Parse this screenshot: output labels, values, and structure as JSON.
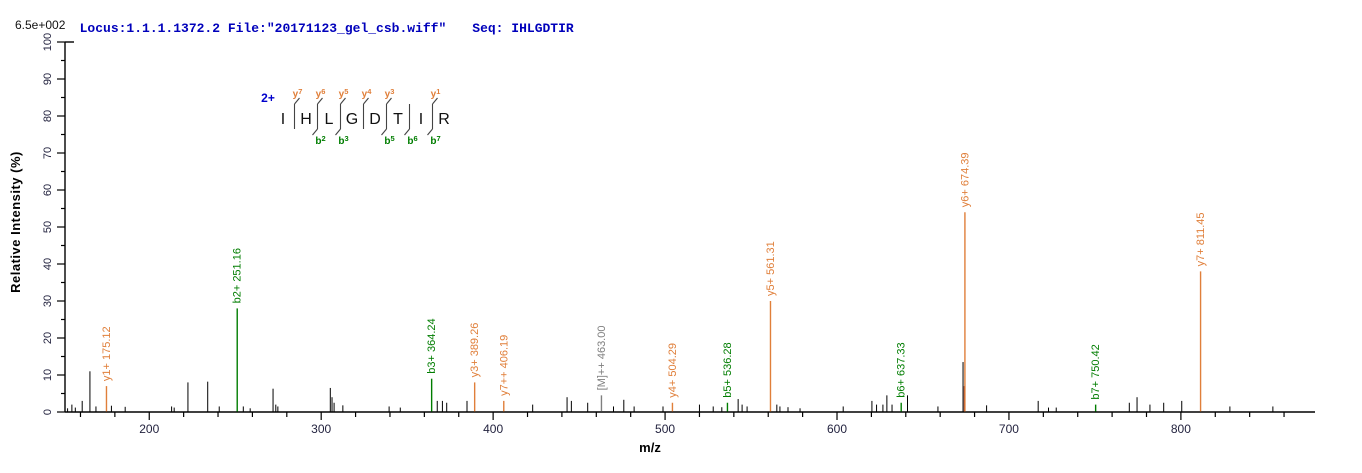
{
  "header": {
    "locus_file": "Locus:1.1.1.1372.2 File:\"20171123_gel_csb.wiff\"",
    "seq": "Seq: IHLGDTIR"
  },
  "peptide": {
    "charge_label": "2+",
    "residues": [
      "I",
      "H",
      "L",
      "G",
      "D",
      "T",
      "I",
      "R"
    ],
    "y_ions": [
      {
        "gap": 1,
        "label": "y7"
      },
      {
        "gap": 2,
        "label": "y6"
      },
      {
        "gap": 3,
        "label": "y5"
      },
      {
        "gap": 4,
        "label": "y4"
      },
      {
        "gap": 5,
        "label": "y3"
      },
      {
        "gap": 7,
        "label": "y1"
      }
    ],
    "b_ions": [
      {
        "gap": 2,
        "label": "b2"
      },
      {
        "gap": 3,
        "label": "b3"
      },
      {
        "gap": 5,
        "label": "b5"
      },
      {
        "gap": 6,
        "label": "b6"
      },
      {
        "gap": 7,
        "label": "b7"
      }
    ]
  },
  "chart_data": {
    "type": "bar",
    "subtype": "ms2-stick-spectrum",
    "title": "",
    "xlabel": "m/z",
    "ylabel": "Relative Intensity (%)",
    "intensity_scale_label": "6.5e+002",
    "xlim": [
      151,
      878
    ],
    "ylim": [
      0,
      100
    ],
    "x_major_ticks": [
      200,
      300,
      400,
      500,
      600,
      700,
      800
    ],
    "x_minor_tick_start": 160,
    "x_minor_tick_end": 860,
    "x_minor_tick_step": 20,
    "y_major_ticks": [
      0,
      10,
      20,
      30,
      40,
      50,
      60,
      70,
      80,
      90,
      100
    ],
    "y_minor_tick_step": 5,
    "grid": false,
    "legend": "none",
    "colors": {
      "axis": "#000000",
      "tick_text": "#23233f",
      "header_text": "#0000bb",
      "charge": "#0000cc",
      "y": "#e07f3a",
      "b": "#007d00",
      "parent": "#7f7f7f",
      "noise": "#000000",
      "noise2": "#8c3226",
      "frag_mark": "#444444"
    },
    "peaks": [
      {
        "mz": 152.5,
        "i": 1.0,
        "s": "noise"
      },
      {
        "mz": 155.0,
        "i": 2.0,
        "s": "noise"
      },
      {
        "mz": 157.0,
        "i": 1.2,
        "s": "noise"
      },
      {
        "mz": 161.0,
        "i": 3.0,
        "s": "noise"
      },
      {
        "mz": 165.5,
        "i": 11.0,
        "s": "noise"
      },
      {
        "mz": 169.0,
        "i": 1.5,
        "s": "noise"
      },
      {
        "mz": 175.12,
        "i": 7.0,
        "s": "y",
        "label": "y1+ 175.12"
      },
      {
        "mz": 178.0,
        "i": 1.7,
        "s": "noise"
      },
      {
        "mz": 186.0,
        "i": 1.4,
        "s": "noise"
      },
      {
        "mz": 213.0,
        "i": 1.5,
        "s": "noise"
      },
      {
        "mz": 214.5,
        "i": 1.2,
        "s": "noise"
      },
      {
        "mz": 222.5,
        "i": 8.0,
        "s": "noise"
      },
      {
        "mz": 234.0,
        "i": 8.2,
        "s": "noise"
      },
      {
        "mz": 240.7,
        "i": 1.5,
        "s": "noise"
      },
      {
        "mz": 251.16,
        "i": 28.0,
        "s": "b",
        "label": "b2+ 251.16"
      },
      {
        "mz": 254.7,
        "i": 1.5,
        "s": "noise"
      },
      {
        "mz": 258.7,
        "i": 1.0,
        "s": "noise"
      },
      {
        "mz": 272.0,
        "i": 6.3,
        "s": "noise"
      },
      {
        "mz": 273.6,
        "i": 2.0,
        "s": "noise"
      },
      {
        "mz": 274.8,
        "i": 1.5,
        "s": "noise"
      },
      {
        "mz": 305.3,
        "i": 6.5,
        "s": "noise"
      },
      {
        "mz": 306.3,
        "i": 4.0,
        "s": "noise"
      },
      {
        "mz": 307.5,
        "i": 2.5,
        "s": "noise"
      },
      {
        "mz": 312.6,
        "i": 1.8,
        "s": "noise"
      },
      {
        "mz": 339.5,
        "i": 1.5,
        "s": "noise"
      },
      {
        "mz": 346.0,
        "i": 1.2,
        "s": "noise"
      },
      {
        "mz": 364.24,
        "i": 9.0,
        "s": "b",
        "label": "b3+ 364.24"
      },
      {
        "mz": 367.5,
        "i": 3.0,
        "s": "noise"
      },
      {
        "mz": 370.5,
        "i": 3.0,
        "s": "noise"
      },
      {
        "mz": 373.0,
        "i": 2.5,
        "s": "noise"
      },
      {
        "mz": 384.8,
        "i": 3.0,
        "s": "noise"
      },
      {
        "mz": 389.26,
        "i": 8.0,
        "s": "y",
        "label": "y3+ 389.26"
      },
      {
        "mz": 406.19,
        "i": 3.0,
        "s": "y",
        "label": "y7++ 406.19"
      },
      {
        "mz": 423.0,
        "i": 2.0,
        "s": "noise"
      },
      {
        "mz": 443.0,
        "i": 4.0,
        "s": "noise"
      },
      {
        "mz": 445.5,
        "i": 3.0,
        "s": "noise"
      },
      {
        "mz": 455.0,
        "i": 2.5,
        "s": "noise"
      },
      {
        "mz": 463.0,
        "i": 4.5,
        "s": "parent",
        "label": "[M]++ 463.00"
      },
      {
        "mz": 470.0,
        "i": 1.5,
        "s": "noise"
      },
      {
        "mz": 476.0,
        "i": 3.3,
        "s": "noise"
      },
      {
        "mz": 482.0,
        "i": 1.5,
        "s": "noise"
      },
      {
        "mz": 498.8,
        "i": 1.5,
        "s": "noise"
      },
      {
        "mz": 504.29,
        "i": 2.5,
        "s": "y",
        "label": "y4+ 504.29"
      },
      {
        "mz": 520.0,
        "i": 2.0,
        "s": "noise"
      },
      {
        "mz": 528.0,
        "i": 1.5,
        "s": "noise"
      },
      {
        "mz": 533.0,
        "i": 1.3,
        "s": "noise"
      },
      {
        "mz": 536.28,
        "i": 2.5,
        "s": "b",
        "label": "b5+ 536.28"
      },
      {
        "mz": 542.5,
        "i": 3.5,
        "s": "noise"
      },
      {
        "mz": 544.8,
        "i": 2.0,
        "s": "noise"
      },
      {
        "mz": 547.7,
        "i": 1.5,
        "s": "noise"
      },
      {
        "mz": 561.31,
        "i": 30.0,
        "s": "y",
        "label": "y5+ 561.31"
      },
      {
        "mz": 565.0,
        "i": 2.0,
        "s": "noise"
      },
      {
        "mz": 566.8,
        "i": 1.5,
        "s": "noise"
      },
      {
        "mz": 571.5,
        "i": 1.3,
        "s": "noise"
      },
      {
        "mz": 578.5,
        "i": 1.0,
        "s": "noise"
      },
      {
        "mz": 603.6,
        "i": 1.5,
        "s": "noise"
      },
      {
        "mz": 620.3,
        "i": 3.0,
        "s": "noise"
      },
      {
        "mz": 623.0,
        "i": 2.0,
        "s": "noise"
      },
      {
        "mz": 626.7,
        "i": 2.0,
        "s": "noise"
      },
      {
        "mz": 629.0,
        "i": 4.5,
        "s": "noise"
      },
      {
        "mz": 632.0,
        "i": 2.0,
        "s": "noise"
      },
      {
        "mz": 637.33,
        "i": 2.5,
        "s": "b",
        "label": "b6+ 637.33"
      },
      {
        "mz": 641.0,
        "i": 4.5,
        "s": "noise"
      },
      {
        "mz": 658.7,
        "i": 1.5,
        "s": "noise"
      },
      {
        "mz": 673.3,
        "i": 13.5,
        "s": "noise"
      },
      {
        "mz": 674.0,
        "i": 7.0,
        "s": "noise2"
      },
      {
        "mz": 674.39,
        "i": 54.0,
        "s": "y",
        "label": "y6+ 674.39"
      },
      {
        "mz": 687.0,
        "i": 1.8,
        "s": "noise"
      },
      {
        "mz": 717.0,
        "i": 3.0,
        "s": "noise"
      },
      {
        "mz": 723.0,
        "i": 1.2,
        "s": "noise"
      },
      {
        "mz": 727.5,
        "i": 1.2,
        "s": "noise"
      },
      {
        "mz": 750.42,
        "i": 2.0,
        "s": "b",
        "label": "b7+ 750.42"
      },
      {
        "mz": 770.0,
        "i": 2.5,
        "s": "noise"
      },
      {
        "mz": 774.5,
        "i": 4.0,
        "s": "noise"
      },
      {
        "mz": 782.0,
        "i": 2.0,
        "s": "noise"
      },
      {
        "mz": 790.0,
        "i": 2.5,
        "s": "noise"
      },
      {
        "mz": 800.5,
        "i": 3.0,
        "s": "noise"
      },
      {
        "mz": 811.45,
        "i": 38.0,
        "s": "y",
        "label": "y7+ 811.45"
      },
      {
        "mz": 828.5,
        "i": 1.5,
        "s": "noise"
      },
      {
        "mz": 853.5,
        "i": 1.5,
        "s": "noise"
      }
    ]
  }
}
